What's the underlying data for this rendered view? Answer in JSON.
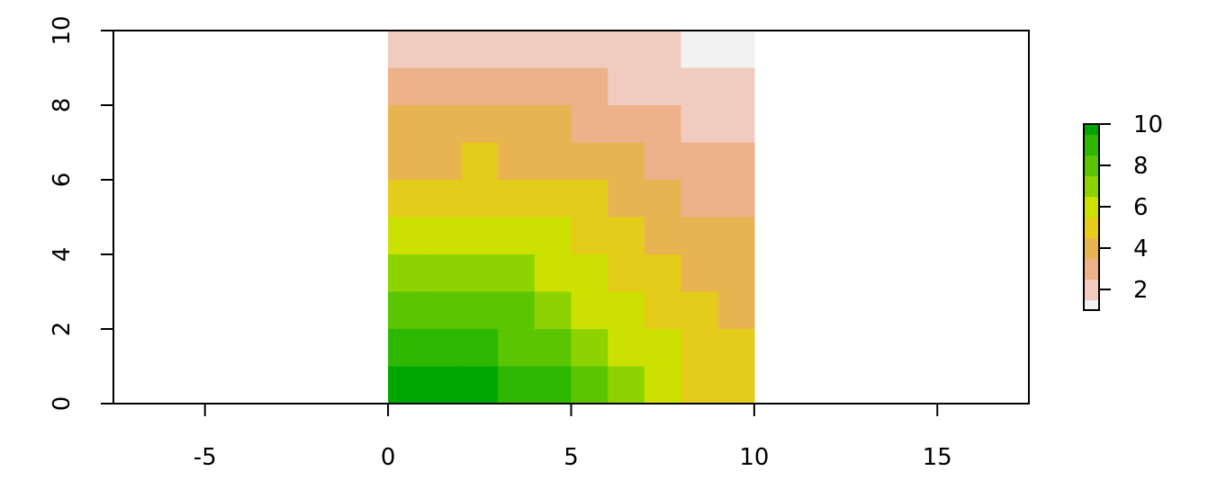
{
  "chart_data": {
    "type": "heatmap",
    "title": "",
    "xlabel": "",
    "ylabel": "",
    "xlim": [
      -7.5,
      17.5
    ],
    "ylim": [
      0,
      10
    ],
    "x_ticks": [
      "-5",
      "0",
      "5",
      "10",
      "15"
    ],
    "y_ticks": [
      "0",
      "2",
      "4",
      "6",
      "8",
      "10"
    ],
    "grid": false,
    "cells": {
      "x_range": [
        0,
        10
      ],
      "y_range": [
        0,
        10
      ],
      "rows_top_to_bottom": [
        [
          2,
          2,
          2,
          2,
          2,
          2,
          2,
          2,
          1,
          1
        ],
        [
          3,
          3,
          3,
          3,
          3,
          3,
          2,
          2,
          2,
          2
        ],
        [
          4,
          4,
          4,
          4,
          4,
          3,
          3,
          3,
          2,
          2
        ],
        [
          4,
          4,
          5,
          4,
          4,
          4,
          4,
          3,
          3,
          3
        ],
        [
          5,
          5,
          5,
          5,
          5,
          5,
          4,
          4,
          3,
          3
        ],
        [
          6,
          6,
          6,
          6,
          6,
          5,
          5,
          4,
          4,
          4
        ],
        [
          7,
          7,
          7,
          7,
          6,
          6,
          5,
          5,
          4,
          4
        ],
        [
          8,
          8,
          8,
          8,
          7,
          6,
          6,
          5,
          5,
          4
        ],
        [
          9,
          9,
          9,
          8,
          8,
          7,
          6,
          6,
          5,
          5
        ],
        [
          10,
          10,
          10,
          9,
          9,
          8,
          7,
          6,
          5,
          5
        ]
      ]
    },
    "legend": {
      "placement": "right",
      "range": [
        1,
        10
      ],
      "ticks": [
        "2",
        "4",
        "6",
        "8",
        "10"
      ],
      "colors": [
        "#F2F2F2",
        "#F1CBBF",
        "#EDB28A",
        "#E8B452",
        "#E6CC1A",
        "#CCE100",
        "#8DD300",
        "#5AC500",
        "#2DB700",
        "#00A600"
      ]
    }
  }
}
